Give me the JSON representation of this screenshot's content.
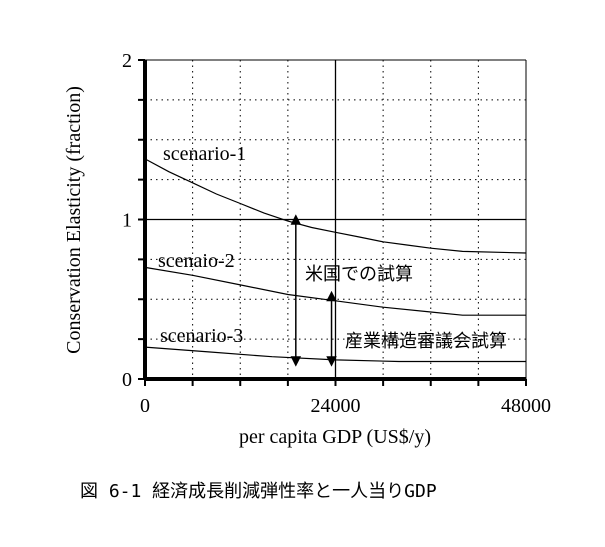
{
  "chart_data": {
    "type": "line",
    "xlabel": "per capita GDP  (US$/y)",
    "ylabel": "Conservation Elasticity  (fraction)",
    "xlim": [
      0,
      48000
    ],
    "ylim": [
      0,
      2
    ],
    "x_ticks": [
      "0",
      "24000",
      "48000"
    ],
    "y_ticks": [
      "0",
      "1",
      "2"
    ],
    "grid": "dotted",
    "series": [
      {
        "name": "scenario-1",
        "points": [
          [
            0,
            1.38
          ],
          [
            3000,
            1.3
          ],
          [
            6000,
            1.23
          ],
          [
            9000,
            1.16
          ],
          [
            12000,
            1.1
          ],
          [
            15000,
            1.04
          ],
          [
            18000,
            0.99
          ],
          [
            21000,
            0.95
          ],
          [
            24000,
            0.92
          ],
          [
            27000,
            0.89
          ],
          [
            30000,
            0.86
          ],
          [
            33000,
            0.84
          ],
          [
            36000,
            0.82
          ],
          [
            40000,
            0.8
          ],
          [
            48000,
            0.79
          ]
        ]
      },
      {
        "name": "scenaio-2",
        "points": [
          [
            0,
            0.7
          ],
          [
            6000,
            0.65
          ],
          [
            12000,
            0.59
          ],
          [
            18000,
            0.53
          ],
          [
            24000,
            0.49
          ],
          [
            30000,
            0.45
          ],
          [
            36000,
            0.42
          ],
          [
            40000,
            0.4
          ],
          [
            48000,
            0.4
          ]
        ]
      },
      {
        "name": "scenario-3",
        "points": [
          [
            0,
            0.2
          ],
          [
            8000,
            0.17
          ],
          [
            16000,
            0.14
          ],
          [
            24000,
            0.12
          ],
          [
            32000,
            0.11
          ],
          [
            48000,
            0.11
          ]
        ]
      }
    ],
    "annotations": [
      {
        "text": "米国での試算",
        "x_from": 19000,
        "y_from": 1.0,
        "y_to": 0.11
      },
      {
        "text": "産業構造審議会試算",
        "x_from": 23500,
        "y_from": 0.52,
        "y_to": 0.11
      }
    ],
    "caption": "図 6-1  経済成長削減弾性率と一人当りGDP"
  }
}
